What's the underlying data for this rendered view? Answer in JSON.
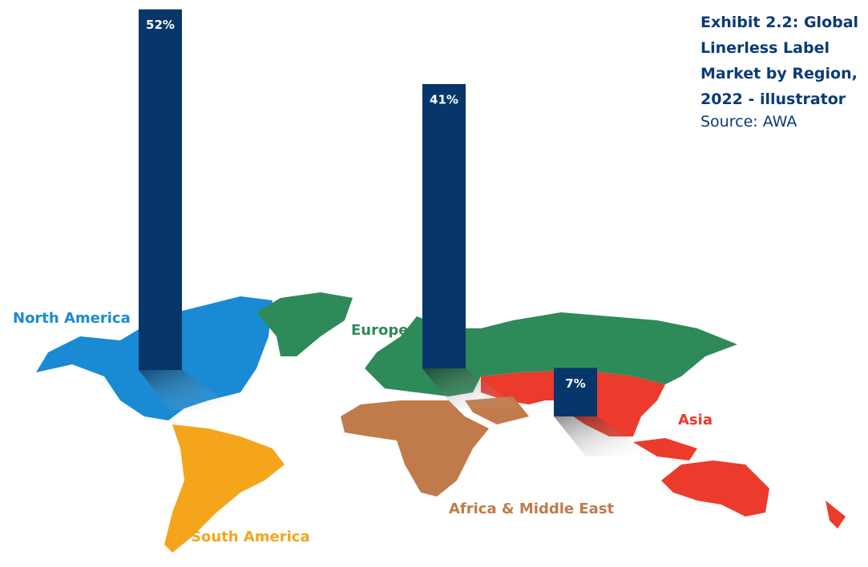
{
  "chart_data": {
    "type": "bar",
    "title": "Exhibit 2.2: Global Linerless Label Market by Region, 2022 - illustrator",
    "source": "Source: AWA",
    "categories": [
      "North America",
      "South America",
      "Europe",
      "Asia",
      "Africa & Middle East"
    ],
    "values": [
      52,
      null,
      41,
      7,
      null
    ],
    "value_labels": [
      "52%",
      null,
      "41%",
      "7%",
      null
    ],
    "colors": [
      "#1a8ad4",
      "#f5a51c",
      "#2f8a5a",
      "#ec3a2c",
      "#c17a4a"
    ],
    "color": "#06366a"
  }
}
